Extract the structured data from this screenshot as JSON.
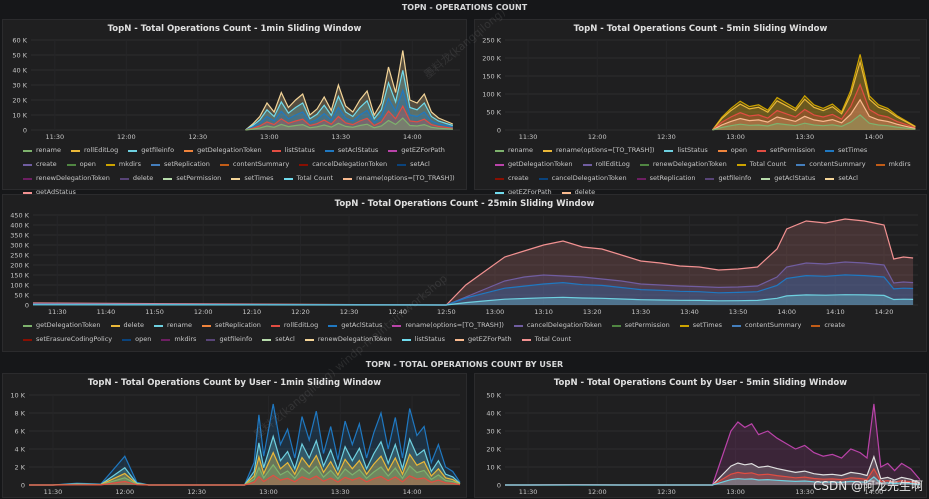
{
  "rows": {
    "ops": "TOPN - OPERATIONS COUNT",
    "by_user": "TOPN - TOTAL OPERATIONS COUNT BY USER"
  },
  "watermark": "CSDN @阿龙先生啊",
  "diag_watermark": "墨料龙(kangqilong) windp-maintain-workshop",
  "chart_data": [
    {
      "id": "p1",
      "type": "area",
      "title": "TopN - Total Operations Count - 1min Sliding Window",
      "y_ticks": [
        "0",
        "10 K",
        "20 K",
        "30 K",
        "40 K",
        "50 K",
        "60 K"
      ],
      "ylim": [
        0,
        60000
      ],
      "x_ticks": [
        "11:30",
        "12:00",
        "12:30",
        "13:00",
        "13:30",
        "14:00"
      ],
      "x_tick_minutes": [
        0,
        30,
        60,
        90,
        120,
        150
      ],
      "xlim_minutes": [
        -10,
        170
      ],
      "series": [
        {
          "name": "rename",
          "color": "#7eb26d"
        },
        {
          "name": "rollEditLog",
          "color": "#eab839"
        },
        {
          "name": "getfileinfo",
          "color": "#6ed0e0"
        },
        {
          "name": "getDelegationToken",
          "color": "#ef843c"
        },
        {
          "name": "listStatus",
          "color": "#e24d42"
        },
        {
          "name": "setAclStatus",
          "color": "#1f78c1"
        },
        {
          "name": "getEZForPath",
          "color": "#ba43a9"
        },
        {
          "name": "create",
          "color": "#705da0"
        },
        {
          "name": "open",
          "color": "#508642"
        },
        {
          "name": "mkdirs",
          "color": "#cca300"
        },
        {
          "name": "setReplication",
          "color": "#447ebc"
        },
        {
          "name": "contentSummary",
          "color": "#c15c17"
        },
        {
          "name": "cancelDelegationToken",
          "color": "#890f02"
        },
        {
          "name": "setAcl",
          "color": "#0a437c"
        },
        {
          "name": "renewDelegationToken",
          "color": "#6d1f62"
        },
        {
          "name": "delete",
          "color": "#584477"
        },
        {
          "name": "setPermission",
          "color": "#b7dbab"
        },
        {
          "name": "setTimes",
          "color": "#f4d598"
        },
        {
          "name": "Total Count",
          "color": "#70dbed"
        },
        {
          "name": "rename(options=[TO_TRASH])",
          "color": "#f9ba8f"
        },
        {
          "name": "getAdStatus",
          "color": "#f29191"
        }
      ],
      "envelope": {
        "x": [
          80,
          83,
          86,
          89,
          92,
          95,
          98,
          101,
          104,
          107,
          110,
          113,
          116,
          119,
          122,
          125,
          128,
          131,
          134,
          137,
          140,
          143,
          146,
          149,
          152,
          155,
          158,
          161,
          164,
          167
        ],
        "total": [
          0,
          4000,
          9000,
          18000,
          12000,
          25000,
          15000,
          20000,
          24000,
          10000,
          14000,
          22000,
          13000,
          30000,
          16000,
          12000,
          20000,
          26000,
          10000,
          18000,
          42000,
          25000,
          53000,
          20000,
          18000,
          24000,
          12000,
          8000,
          6000,
          4000
        ]
      }
    },
    {
      "id": "p2",
      "type": "area",
      "title": "TopN - Total Operations Count - 5min Sliding Window",
      "y_ticks": [
        "0",
        "50 K",
        "100 K",
        "150 K",
        "200 K",
        "250 K"
      ],
      "ylim": [
        0,
        250000
      ],
      "x_ticks": [
        "11:30",
        "12:00",
        "12:30",
        "13:00",
        "13:30",
        "14:00"
      ],
      "x_tick_minutes": [
        0,
        30,
        60,
        90,
        120,
        150
      ],
      "xlim_minutes": [
        -10,
        170
      ],
      "series": [
        {
          "name": "rename",
          "color": "#7eb26d"
        },
        {
          "name": "rename(options=[TO_TRASH])",
          "color": "#eab839"
        },
        {
          "name": "listStatus",
          "color": "#6ed0e0"
        },
        {
          "name": "open",
          "color": "#ef843c"
        },
        {
          "name": "setPermission",
          "color": "#e24d42"
        },
        {
          "name": "setTimes",
          "color": "#1f78c1"
        },
        {
          "name": "getDelegationToken",
          "color": "#ba43a9"
        },
        {
          "name": "rollEditLog",
          "color": "#705da0"
        },
        {
          "name": "renewDelegationToken",
          "color": "#508642"
        },
        {
          "name": "Total Count",
          "color": "#cca300"
        },
        {
          "name": "contentSummary",
          "color": "#447ebc"
        },
        {
          "name": "mkdirs",
          "color": "#c15c17"
        },
        {
          "name": "create",
          "color": "#890f02"
        },
        {
          "name": "cancelDelegationToken",
          "color": "#0a437c"
        },
        {
          "name": "setReplication",
          "color": "#6d1f62"
        },
        {
          "name": "getfileinfo",
          "color": "#584477"
        },
        {
          "name": "getAclStatus",
          "color": "#b7dbab"
        },
        {
          "name": "setAcl",
          "color": "#f4d598"
        },
        {
          "name": "getEZForPath",
          "color": "#70dbed"
        },
        {
          "name": "delete",
          "color": "#f9ba8f"
        }
      ],
      "envelope": {
        "x": [
          80,
          84,
          88,
          92,
          96,
          100,
          104,
          108,
          112,
          116,
          120,
          124,
          128,
          132,
          136,
          140,
          144,
          148,
          152,
          156,
          160,
          164,
          168
        ],
        "total": [
          0,
          35000,
          60000,
          80000,
          65000,
          70000,
          55000,
          90000,
          75000,
          60000,
          95000,
          70000,
          60000,
          72000,
          50000,
          110000,
          210000,
          95000,
          70000,
          60000,
          40000,
          25000,
          10000
        ]
      }
    },
    {
      "id": "p3",
      "type": "area",
      "title": "TopN - Total Operations Count - 25min Sliding Window",
      "y_ticks": [
        "0",
        "50 K",
        "100 K",
        "150 K",
        "200 K",
        "250 K",
        "300 K",
        "350 K",
        "400 K",
        "450 K"
      ],
      "ylim": [
        0,
        450000
      ],
      "x_ticks": [
        "11:30",
        "11:40",
        "11:50",
        "12:00",
        "12:10",
        "12:20",
        "12:30",
        "12:40",
        "12:50",
        "13:00",
        "13:10",
        "13:20",
        "13:30",
        "13:40",
        "13:50",
        "14:00",
        "14:10",
        "14:20"
      ],
      "x_tick_minutes": [
        0,
        10,
        20,
        30,
        40,
        50,
        60,
        70,
        80,
        90,
        100,
        110,
        120,
        130,
        140,
        150,
        160,
        170
      ],
      "xlim_minutes": [
        -5,
        177
      ],
      "series": [
        {
          "name": "getDelegationToken",
          "color": "#7eb26d"
        },
        {
          "name": "delete",
          "color": "#eab839"
        },
        {
          "name": "rename",
          "color": "#6ed0e0"
        },
        {
          "name": "setReplication",
          "color": "#ef843c"
        },
        {
          "name": "rollEditLog",
          "color": "#e24d42"
        },
        {
          "name": "getAclStatus",
          "color": "#1f78c1"
        },
        {
          "name": "rename(options=[TO_TRASH])",
          "color": "#ba43a9"
        },
        {
          "name": "cancelDelegationToken",
          "color": "#705da0"
        },
        {
          "name": "setPermission",
          "color": "#508642"
        },
        {
          "name": "setTimes",
          "color": "#cca300"
        },
        {
          "name": "contentSummary",
          "color": "#447ebc"
        },
        {
          "name": "create",
          "color": "#c15c17"
        },
        {
          "name": "setErasureCodingPolicy",
          "color": "#890f02"
        },
        {
          "name": "open",
          "color": "#0a437c"
        },
        {
          "name": "mkdirs",
          "color": "#6d1f62"
        },
        {
          "name": "getfileinfo",
          "color": "#584477"
        },
        {
          "name": "setAcl",
          "color": "#b7dbab"
        },
        {
          "name": "renewDelegationToken",
          "color": "#f4d598"
        },
        {
          "name": "listStatus",
          "color": "#70dbed"
        },
        {
          "name": "getEZForPath",
          "color": "#f9ba8f"
        },
        {
          "name": "Total Count",
          "color": "#f29191"
        }
      ],
      "envelope": {
        "x": [
          -5,
          80,
          84,
          88,
          92,
          96,
          100,
          104,
          108,
          112,
          116,
          120,
          124,
          128,
          132,
          136,
          140,
          144,
          148,
          150,
          154,
          158,
          162,
          166,
          170,
          172,
          174,
          176
        ],
        "total": [
          10000,
          0,
          100000,
          170000,
          240000,
          270000,
          300000,
          320000,
          290000,
          280000,
          250000,
          220000,
          210000,
          195000,
          190000,
          175000,
          180000,
          190000,
          280000,
          380000,
          420000,
          410000,
          430000,
          420000,
          400000,
          230000,
          240000,
          235000
        ],
        "secondary": [
          5000,
          0,
          40000,
          80000,
          120000,
          140000,
          150000,
          145000,
          140000,
          130000,
          120000,
          105000,
          100000,
          95000,
          92000,
          88000,
          90000,
          95000,
          140000,
          190000,
          210000,
          205000,
          215000,
          210000,
          200000,
          110000,
          115000,
          112000
        ]
      }
    },
    {
      "id": "p4",
      "type": "area",
      "title": "TopN - Total Operations Count by User - 1min Sliding Window",
      "y_ticks": [
        "0",
        "2 K",
        "4 K",
        "6 K",
        "8 K",
        "10 K"
      ],
      "ylim": [
        0,
        10000
      ],
      "x_ticks": [
        "11:30",
        "12:00",
        "12:30",
        "13:00",
        "13:30",
        "14:00"
      ],
      "x_tick_minutes": [
        0,
        30,
        60,
        90,
        120,
        150
      ],
      "xlim_minutes": [
        -10,
        170
      ],
      "envelope": {
        "x": [
          -10,
          0,
          10,
          20,
          30,
          35,
          40,
          60,
          80,
          84,
          86,
          88,
          92,
          95,
          98,
          101,
          104,
          107,
          110,
          113,
          116,
          119,
          122,
          125,
          128,
          131,
          134,
          137,
          140,
          143,
          146,
          149,
          152,
          155,
          158,
          161,
          164,
          167,
          170
        ],
        "total": [
          0,
          0,
          200,
          100,
          3200,
          300,
          0,
          0,
          0,
          2500,
          7800,
          3200,
          9000,
          4500,
          6200,
          3000,
          7600,
          5000,
          8200,
          3500,
          6500,
          2800,
          7100,
          4500,
          6800,
          3000,
          5800,
          8000,
          4000,
          7500,
          3000,
          8500,
          5500,
          6500,
          2500,
          4500,
          2000,
          1500,
          300
        ]
      }
    },
    {
      "id": "p5",
      "type": "area",
      "title": "TopN - Total Operations Count by User - 5min Sliding Window",
      "y_ticks": [
        "0",
        "10 K",
        "20 K",
        "30 K",
        "40 K",
        "50 K"
      ],
      "ylim": [
        0,
        50000
      ],
      "x_ticks": [
        "11:30",
        "12:00",
        "12:30",
        "13:00",
        "13:30",
        "14:00"
      ],
      "x_tick_minutes": [
        0,
        30,
        60,
        90,
        120,
        150
      ],
      "xlim_minutes": [
        -10,
        170
      ],
      "envelope": {
        "x": [
          -10,
          0,
          20,
          40,
          60,
          80,
          84,
          88,
          91,
          94,
          97,
          100,
          104,
          108,
          112,
          116,
          120,
          124,
          128,
          132,
          136,
          140,
          144,
          147,
          150,
          153,
          156,
          159,
          162,
          166,
          170
        ],
        "total": [
          0,
          0,
          200,
          0,
          0,
          0,
          15000,
          30000,
          35000,
          32000,
          34000,
          28000,
          30000,
          26000,
          23000,
          20000,
          22000,
          18000,
          16000,
          17000,
          15000,
          20000,
          18000,
          15000,
          45000,
          10000,
          12000,
          8000,
          12000,
          9000,
          3000
        ]
      }
    }
  ]
}
